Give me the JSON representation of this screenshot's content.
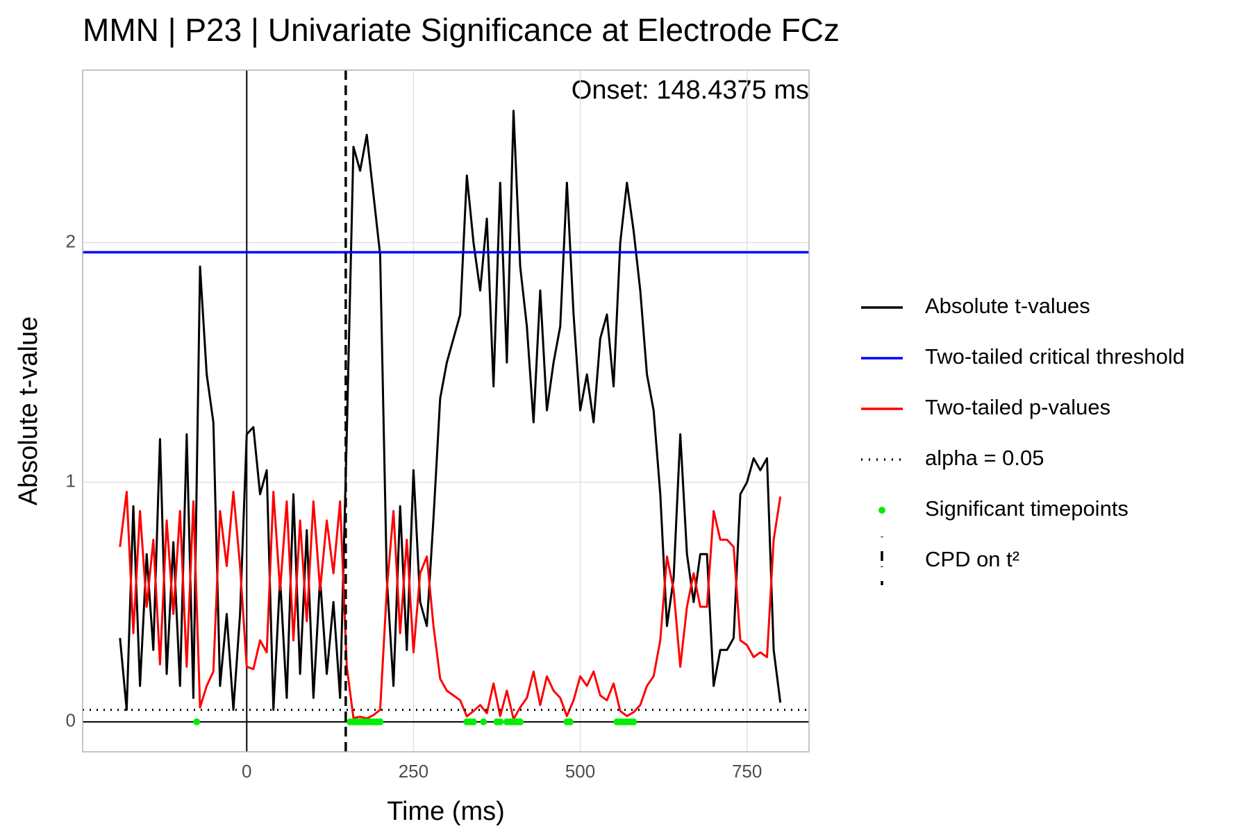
{
  "chart_data": {
    "type": "line",
    "title": "MMN | P23 | Univariate Significance at Electrode FCz",
    "x_label": "Time (ms)",
    "y_label": "Absolute t-value",
    "annotation": "Onset: 148.4375 ms",
    "xlim": [
      -246,
      843
    ],
    "ylim": [
      -0.125,
      2.72
    ],
    "xticks": [
      0,
      250,
      500,
      750
    ],
    "yticks": [
      0,
      1,
      2
    ],
    "grid": true,
    "vline": 0,
    "hline": 0,
    "legend_position": "right",
    "x": [
      -190,
      -180,
      -170,
      -160,
      -150,
      -140,
      -130,
      -120,
      -110,
      -100,
      -90,
      -80,
      -70,
      -60,
      -50,
      -40,
      -30,
      -20,
      -10,
      0,
      10,
      20,
      30,
      40,
      50,
      60,
      70,
      80,
      90,
      100,
      110,
      120,
      130,
      140,
      150,
      160,
      170,
      180,
      190,
      200,
      210,
      220,
      230,
      240,
      250,
      260,
      270,
      280,
      290,
      300,
      310,
      320,
      330,
      340,
      350,
      360,
      370,
      380,
      390,
      400,
      410,
      420,
      430,
      440,
      450,
      460,
      470,
      480,
      490,
      500,
      510,
      520,
      530,
      540,
      550,
      560,
      570,
      580,
      590,
      600,
      610,
      620,
      630,
      640,
      650,
      660,
      670,
      680,
      690,
      700,
      710,
      720,
      730,
      740,
      750,
      760,
      770,
      780,
      790,
      800
    ],
    "series": [
      {
        "name": "Absolute t-values",
        "kind": "line",
        "color": "#000000",
        "values": [
          0.35,
          0.05,
          0.9,
          0.15,
          0.7,
          0.3,
          1.18,
          0.2,
          0.75,
          0.15,
          1.2,
          0.1,
          1.9,
          1.45,
          1.25,
          0.15,
          0.45,
          0.05,
          0.45,
          1.2,
          1.23,
          0.95,
          1.05,
          0.05,
          0.6,
          0.1,
          0.95,
          0.2,
          0.8,
          0.1,
          0.6,
          0.2,
          0.5,
          0.1,
          1.2,
          2.4,
          2.3,
          2.45,
          2.2,
          1.95,
          0.6,
          0.15,
          0.9,
          0.3,
          1.05,
          0.5,
          0.4,
          0.85,
          1.35,
          1.5,
          1.6,
          1.7,
          2.28,
          2.0,
          1.8,
          2.1,
          1.4,
          2.25,
          1.5,
          2.55,
          1.9,
          1.65,
          1.25,
          1.8,
          1.3,
          1.5,
          1.65,
          2.25,
          1.7,
          1.3,
          1.45,
          1.25,
          1.6,
          1.7,
          1.4,
          2.0,
          2.25,
          2.05,
          1.8,
          1.45,
          1.3,
          0.95,
          0.4,
          0.6,
          1.2,
          0.7,
          0.5,
          0.7,
          0.7,
          0.15,
          0.3,
          0.3,
          0.35,
          0.95,
          1.0,
          1.1,
          1.05,
          1.1,
          0.3,
          0.08
        ]
      },
      {
        "name": "Two-tailed critical threshold",
        "kind": "hline",
        "color": "#0000ff",
        "value": 1.96
      },
      {
        "name": "Two-tailed p-values",
        "kind": "line",
        "color": "#ff0000",
        "values": [
          0.73,
          0.96,
          0.37,
          0.88,
          0.48,
          0.76,
          0.24,
          0.84,
          0.45,
          0.88,
          0.23,
          0.92,
          0.06,
          0.15,
          0.21,
          0.88,
          0.65,
          0.96,
          0.65,
          0.23,
          0.22,
          0.34,
          0.29,
          0.96,
          0.55,
          0.92,
          0.34,
          0.84,
          0.42,
          0.92,
          0.55,
          0.84,
          0.62,
          0.92,
          0.23,
          0.016,
          0.021,
          0.014,
          0.028,
          0.05,
          0.55,
          0.88,
          0.37,
          0.76,
          0.29,
          0.62,
          0.69,
          0.4,
          0.18,
          0.13,
          0.11,
          0.09,
          0.023,
          0.045,
          0.07,
          0.036,
          0.16,
          0.024,
          0.13,
          0.011,
          0.06,
          0.1,
          0.21,
          0.07,
          0.19,
          0.13,
          0.1,
          0.024,
          0.09,
          0.19,
          0.15,
          0.21,
          0.11,
          0.09,
          0.16,
          0.045,
          0.024,
          0.04,
          0.07,
          0.15,
          0.19,
          0.34,
          0.69,
          0.55,
          0.23,
          0.48,
          0.62,
          0.48,
          0.48,
          0.88,
          0.76,
          0.76,
          0.73,
          0.34,
          0.32,
          0.27,
          0.29,
          0.27,
          0.76,
          0.94
        ]
      },
      {
        "name": "alpha = 0.05",
        "kind": "hline-dotted",
        "color": "#000000",
        "value": 0.05
      },
      {
        "name": "Significant timepoints",
        "kind": "points",
        "color": "#00ee00",
        "x": [
          -75,
          155,
          160,
          165,
          170,
          175,
          180,
          185,
          190,
          195,
          200,
          330,
          335,
          340,
          355,
          375,
          380,
          390,
          395,
          400,
          405,
          410,
          480,
          485,
          555,
          560,
          565,
          570,
          575,
          580
        ],
        "values": [
          0,
          0,
          0,
          0,
          0,
          0,
          0,
          0,
          0,
          0,
          0,
          0,
          0,
          0,
          0,
          0,
          0,
          0,
          0,
          0,
          0,
          0,
          0,
          0,
          0,
          0,
          0,
          0,
          0,
          0
        ]
      },
      {
        "name": "CPD on t²",
        "kind": "vline-dashed",
        "color": "#000000",
        "value": 148.4375
      }
    ]
  }
}
